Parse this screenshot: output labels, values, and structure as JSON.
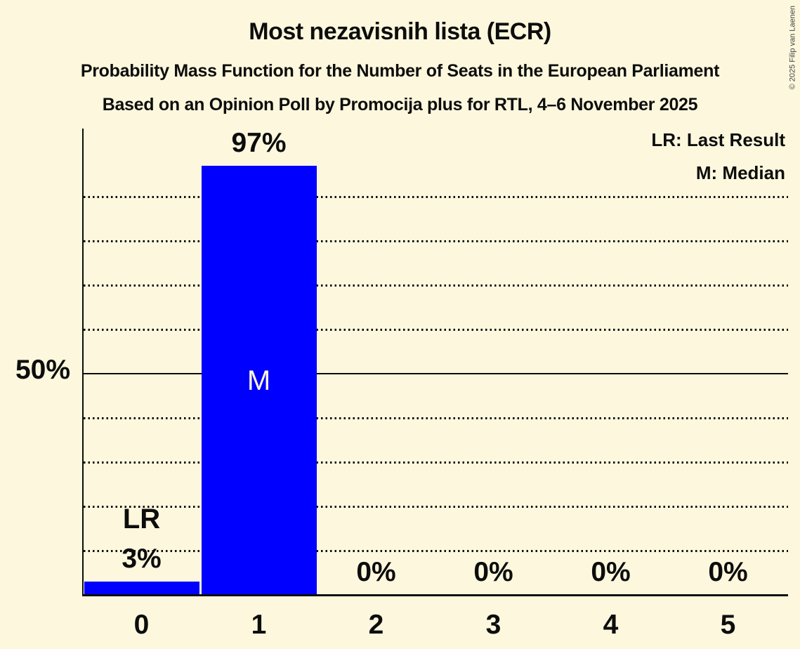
{
  "header": {
    "title": "Most nezavisnih lista (ECR)",
    "subtitle": "Probability Mass Function for the Number of Seats in the European Parliament",
    "source_line": "Based on an Opinion Poll by Promocija plus for RTL, 4–6 November 2025"
  },
  "legend": {
    "last_result": "LR: Last Result",
    "median": "M: Median"
  },
  "copyright": "© 2025 Filip van Laenen",
  "colors": {
    "background": "#fdf8dd",
    "bar": "#0000ff",
    "text": "#0d0d0d",
    "median_label": "#fdf8dd",
    "copyright_text": "#444444"
  },
  "chart_data": {
    "type": "bar",
    "title": "Most nezavisnih lista (ECR)",
    "categories": [
      "0",
      "1",
      "2",
      "3",
      "4",
      "5"
    ],
    "values_pct": [
      3,
      97,
      0,
      0,
      0,
      0
    ],
    "value_labels": [
      "3%",
      "97%",
      "0%",
      "0%",
      "0%",
      "0%"
    ],
    "y_axis": {
      "visible_tick": {
        "value": 50,
        "label": "50%"
      },
      "solid_line_pct": 50,
      "dotted_gridlines_pct": [
        10,
        20,
        30,
        40,
        60,
        70,
        80,
        90
      ],
      "range_pct": [
        0,
        105
      ],
      "grid": "dotted horizontal every 10%"
    },
    "legend_position": "top-right",
    "annotations": [
      {
        "category_index": 0,
        "text": "LR",
        "position": "above-value-label"
      },
      {
        "category_index": 1,
        "text": "M",
        "position": "bar-middle"
      }
    ]
  }
}
